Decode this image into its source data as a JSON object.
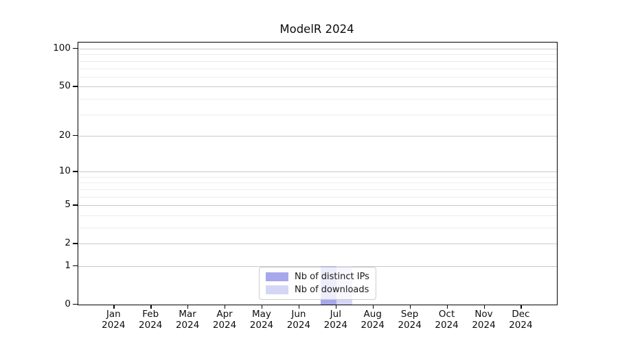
{
  "chart_data": {
    "type": "bar",
    "title": "ModelR 2024",
    "categories": [
      "Jan",
      "Feb",
      "Mar",
      "Apr",
      "May",
      "Jun",
      "Jul",
      "Aug",
      "Sep",
      "Oct",
      "Nov",
      "Dec"
    ],
    "category_year": "2024",
    "series": [
      {
        "name": "Nb of distinct IPs",
        "color": "#a7a7ec",
        "values": [
          0,
          0,
          0,
          0,
          0,
          0,
          1,
          0,
          0,
          0,
          0,
          0
        ]
      },
      {
        "name": "Nb of downloads",
        "color": "#d5d5f6",
        "values": [
          0,
          0,
          0,
          0,
          0,
          0,
          1,
          0,
          0,
          0,
          0,
          0
        ]
      }
    ],
    "yscale": "log1p",
    "yticks": [
      0,
      1,
      2,
      5,
      10,
      20,
      50,
      100
    ],
    "minor_gridline_values": [
      3,
      4,
      6,
      7,
      8,
      9,
      30,
      40,
      60,
      70,
      80,
      90
    ],
    "ylim": [
      0,
      112
    ],
    "xlabel": "",
    "ylabel": "",
    "grid": true,
    "legend_position": "lower center",
    "colors": {
      "major_grid": "#c9c9c9",
      "minor_grid": "#ececec",
      "spine": "#000000",
      "background": "#ffffff"
    }
  }
}
